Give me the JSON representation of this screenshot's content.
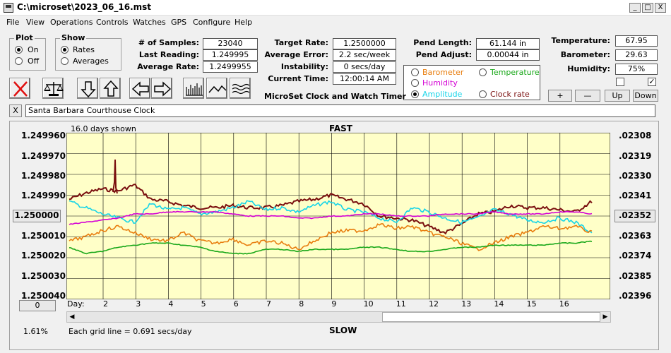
{
  "window": {
    "title": "C:\\microset\\2023_06_16.mst",
    "controls": [
      "_",
      "□",
      "X"
    ]
  },
  "menu": [
    "File",
    "View",
    "Operations",
    "Controls",
    "Watches",
    "GPS",
    "Configure",
    "Help"
  ],
  "plot_group": {
    "title": "Plot",
    "options": [
      "On",
      "Off"
    ],
    "selected": "On"
  },
  "show_group": {
    "title": "Show",
    "options": [
      "Rates",
      "Averages"
    ],
    "selected": "Rates"
  },
  "stats": {
    "samples_label": "# of Samples:",
    "samples": "23040",
    "last_reading_label": "Last Reading:",
    "last_reading": "1.249995",
    "average_rate_label": "Average Rate:",
    "average_rate": "1.2499955",
    "target_rate_label": "Target Rate:",
    "target_rate": "1.2500000",
    "average_error_label": "Average Error:",
    "average_error": "2.2 sec/week",
    "instability_label": "Instability:",
    "instability": "0 secs/day",
    "current_time_label": "Current Time:",
    "current_time": "12:00:14 AM",
    "pend_length_label": "Pend Length:",
    "pend_length": "61.144 in",
    "pend_adjust_label": "Pend Adjust:",
    "pend_adjust": "0.00044 in",
    "temperature_label": "Temperature:",
    "temperature": "67.95",
    "barometer_label": "Barometer:",
    "barometer": "29.63",
    "humidity_label": "Humidity:",
    "humidity": "75%"
  },
  "app_caption": "MicroSet Clock and Watch Timer",
  "sensor_options": [
    {
      "label": "Barometer",
      "color": "#e87d0e"
    },
    {
      "label": "Temperature",
      "color": "#1aa81a"
    },
    {
      "label": "Humidity",
      "color": "#d400d4"
    },
    {
      "label": "Amplitude",
      "color": "#15d4e8"
    },
    {
      "label": "Clock rate",
      "color": "#7a0f0f"
    }
  ],
  "sensor_selected": "Amplitude",
  "adjust_buttons": [
    "+",
    "—",
    "Up",
    "Down"
  ],
  "checkboxes": [
    false,
    true
  ],
  "clock_name": "Santa Barbara Courthouse Clock",
  "close_label": "X",
  "plot": {
    "days_shown": "16.0 days shown",
    "fast_label": "FAST",
    "slow_label": "SLOW",
    "grid_note": "Each grid line = 0.691 secs/day",
    "percent": "1.61%",
    "day_label": "Day:",
    "left_reset_button": "0",
    "left_axis_labels": [
      "1.249960",
      "1.249970",
      "1.249980",
      "1.249990",
      "1.250000",
      "1.250010",
      "1.250020",
      "1.250030",
      "1.250040"
    ],
    "right_axis_labels": [
      ".02308",
      ".02319",
      ".02330",
      ".02341",
      ".02352",
      ".02363",
      ".02374",
      ".02385",
      ".02396"
    ],
    "day_ticks": [
      "2",
      "3",
      "4",
      "5",
      "6",
      "7",
      "8",
      "9",
      "10",
      "11",
      "12",
      "13",
      "14",
      "15",
      "16"
    ]
  },
  "chart_data": {
    "type": "line",
    "x": [
      0.0,
      0.5,
      1.0,
      1.5,
      2.0,
      2.5,
      3.0,
      3.5,
      4.0,
      4.5,
      5.0,
      5.5,
      6.0,
      6.5,
      7.0,
      7.5,
      8.0,
      8.5,
      9.0,
      9.5,
      10.0,
      10.5,
      11.0,
      11.5,
      12.0,
      12.5,
      13.0,
      13.5,
      14.0,
      14.5,
      15.0,
      15.5,
      16.0
    ],
    "ylim": [
      1.24996,
      1.25004
    ],
    "y2lim": [
      0.02308,
      0.02396
    ],
    "top_label": "FAST",
    "bottom_label": "SLOW",
    "series": [
      {
        "name": "Clock rate",
        "color": "#7a0f0f",
        "values": [
          1.249992,
          1.249989,
          1.249987,
          1.249988,
          1.249985,
          1.249992,
          1.249993,
          1.249995,
          1.249996,
          1.249996,
          1.249995,
          1.249996,
          1.249996,
          1.249995,
          1.249993,
          1.249992,
          1.24999,
          1.249992,
          1.249994,
          1.25,
          1.250001,
          1.250002,
          1.250005,
          1.250008,
          1.250004,
          1.249999,
          1.249998,
          1.249995,
          1.249996,
          1.249996,
          1.249997,
          1.249998,
          1.249993
        ]
      },
      {
        "name": "Amplitude",
        "color": "#15d4e8",
        "values": [
          1.249993,
          1.249996,
          1.249999,
          1.250001,
          1.250003,
          1.249994,
          1.249997,
          1.249996,
          1.249999,
          1.249998,
          1.249996,
          1.249993,
          1.249997,
          1.249996,
          1.249998,
          1.249995,
          1.249993,
          1.249997,
          1.249998,
          1.250001,
          1.250003,
          1.249996,
          1.249998,
          1.250001,
          1.250003,
          1.250001,
          1.249997,
          1.249999,
          1.250002,
          1.250003,
          1.250001,
          1.250003,
          1.250008
        ]
      },
      {
        "name": "Humidity",
        "color": "#d400d4",
        "values": [
          1.250004,
          1.250003,
          1.250002,
          1.250001,
          1.249999,
          1.249999,
          1.249998,
          1.249998,
          1.249998,
          1.249998,
          1.249999,
          1.25,
          1.25,
          1.25,
          1.250001,
          1.250001,
          1.25,
          1.25,
          1.249999,
          1.249999,
          1.25,
          1.25,
          1.25,
          1.249999,
          1.249999,
          1.249999,
          1.249998,
          1.249999,
          1.249999,
          1.249999,
          1.249998,
          1.249998,
          1.249999
        ]
      },
      {
        "name": "Barometer",
        "color": "#e87d0e",
        "values": [
          1.250012,
          1.25001,
          1.250007,
          1.250005,
          1.250008,
          1.250011,
          1.250012,
          1.250008,
          1.250012,
          1.250013,
          1.250011,
          1.250014,
          1.250012,
          1.250013,
          1.250016,
          1.250012,
          1.250008,
          1.250007,
          1.250007,
          1.250004,
          1.250006,
          1.250005,
          1.250008,
          1.25001,
          1.250013,
          1.250016,
          1.250013,
          1.25001,
          1.250008,
          1.250005,
          1.250006,
          1.250005,
          1.250008
        ]
      },
      {
        "name": "Temperature",
        "color": "#1aa81a",
        "values": [
          1.250015,
          1.250018,
          1.250017,
          1.250015,
          1.250014,
          1.250013,
          1.250013,
          1.250014,
          1.250015,
          1.250017,
          1.250018,
          1.250018,
          1.250016,
          1.250016,
          1.250017,
          1.250016,
          1.250016,
          1.250016,
          1.250015,
          1.250015,
          1.250016,
          1.250017,
          1.250017,
          1.250016,
          1.250015,
          1.250015,
          1.250014,
          1.250014,
          1.250014,
          1.250014,
          1.250013,
          1.250013,
          1.250012
        ]
      }
    ]
  }
}
